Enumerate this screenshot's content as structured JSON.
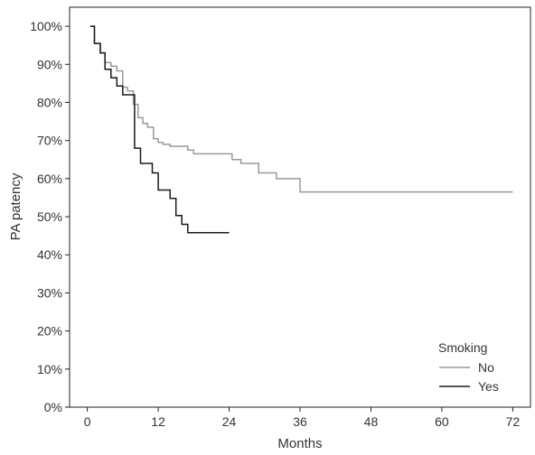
{
  "chart_data": {
    "type": "line",
    "title": "",
    "xlabel": "Months",
    "ylabel": "PA patency",
    "xlim": [
      -3,
      75
    ],
    "ylim": [
      0,
      1.05
    ],
    "x_ticks": [
      0,
      12,
      24,
      36,
      48,
      60,
      72
    ],
    "x_tick_labels": [
      "0",
      "12",
      "24",
      "36",
      "48",
      "60",
      "72"
    ],
    "y_ticks": [
      0,
      0.1,
      0.2,
      0.3,
      0.4,
      0.5,
      0.6,
      0.7,
      0.8,
      0.9,
      1.0
    ],
    "y_tick_labels": [
      "0%",
      "10%",
      "20%",
      "30%",
      "40%",
      "50%",
      "60%",
      "70%",
      "80%",
      "90%",
      "100%"
    ],
    "grid": false,
    "legend": {
      "title": "Smoking",
      "position": "bottom-right"
    },
    "series": [
      {
        "name": "No",
        "color": "#9a9a9a",
        "step": true,
        "points": [
          [
            0.5,
            1.0
          ],
          [
            1.2,
            0.955
          ],
          [
            2.2,
            0.93
          ],
          [
            3.0,
            0.905
          ],
          [
            4.0,
            0.895
          ],
          [
            5.0,
            0.883
          ],
          [
            6.0,
            0.84
          ],
          [
            6.8,
            0.83
          ],
          [
            7.8,
            0.795
          ],
          [
            8.6,
            0.76
          ],
          [
            9.4,
            0.745
          ],
          [
            10.2,
            0.735
          ],
          [
            11.2,
            0.705
          ],
          [
            12.0,
            0.695
          ],
          [
            12.8,
            0.69
          ],
          [
            14.0,
            0.685
          ],
          [
            17.0,
            0.675
          ],
          [
            18.0,
            0.665
          ],
          [
            24.5,
            0.65
          ],
          [
            26.0,
            0.64
          ],
          [
            29.0,
            0.615
          ],
          [
            32.0,
            0.6
          ],
          [
            36.0,
            0.565
          ],
          [
            72.0,
            0.565
          ]
        ]
      },
      {
        "name": "Yes",
        "color": "#1a1a1a",
        "step": true,
        "points": [
          [
            0.5,
            1.0
          ],
          [
            1.2,
            0.955
          ],
          [
            2.2,
            0.93
          ],
          [
            3.0,
            0.887
          ],
          [
            4.0,
            0.865
          ],
          [
            5.0,
            0.843
          ],
          [
            6.0,
            0.82
          ],
          [
            8.0,
            0.68
          ],
          [
            9.0,
            0.64
          ],
          [
            11.0,
            0.615
          ],
          [
            12.0,
            0.57
          ],
          [
            14.0,
            0.548
          ],
          [
            15.0,
            0.503
          ],
          [
            16.0,
            0.48
          ],
          [
            17.0,
            0.458
          ],
          [
            24.0,
            0.458
          ]
        ]
      }
    ]
  }
}
